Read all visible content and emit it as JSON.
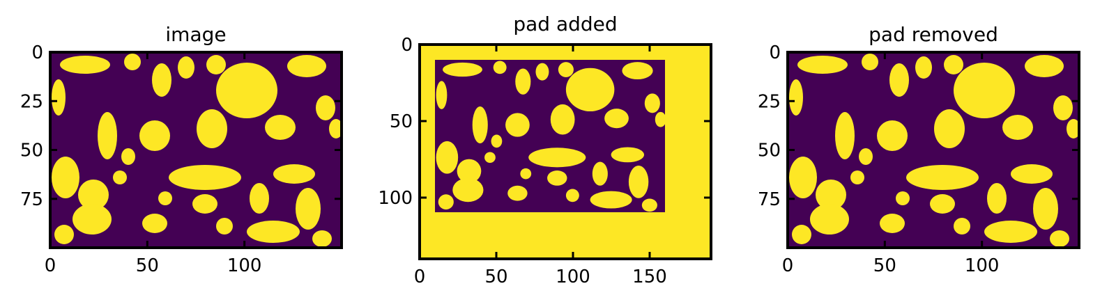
{
  "colors": {
    "background": "#440154",
    "foreground": "#fde725",
    "axes": "#000000"
  },
  "chart_data": [
    {
      "type": "heatmap",
      "title": "image",
      "image_size": [
        150,
        100
      ],
      "xlim": [
        0,
        150
      ],
      "ylim": [
        100,
        0
      ],
      "xticks": [
        0,
        50,
        100
      ],
      "yticks": [
        0,
        25,
        50,
        75
      ],
      "xtick_labels": [
        "0",
        "50",
        "100"
      ],
      "ytick_labels": [
        "0",
        "25",
        "50",
        "75"
      ],
      "grid": false
    },
    {
      "type": "heatmap",
      "title": "pad added",
      "image_size": [
        190,
        140
      ],
      "xlim": [
        0,
        190
      ],
      "ylim": [
        140,
        0
      ],
      "xticks": [
        0,
        50,
        100,
        150
      ],
      "yticks": [
        0,
        50,
        100
      ],
      "xtick_labels": [
        "0",
        "50",
        "100",
        "150"
      ],
      "ytick_labels": [
        "0",
        "50",
        "100"
      ],
      "grid": false
    },
    {
      "type": "heatmap",
      "title": "pad removed",
      "image_size": [
        150,
        100
      ],
      "xlim": [
        0,
        150
      ],
      "ylim": [
        100,
        0
      ],
      "xticks": [
        0,
        50,
        100
      ],
      "yticks": [
        0,
        25,
        50,
        75
      ],
      "xtick_labels": [
        "0",
        "50",
        "100"
      ],
      "ytick_labels": [
        "0",
        "25",
        "50",
        "75"
      ],
      "grid": false
    }
  ]
}
